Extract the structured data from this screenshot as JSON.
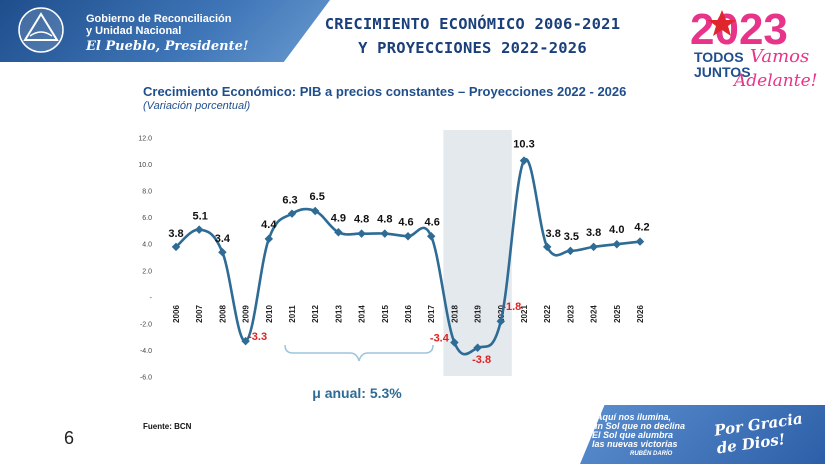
{
  "header": {
    "gov_line1": "Gobierno de Reconciliación",
    "gov_line2": "y Unidad Nacional",
    "motto": "El Pueblo, Presidente!",
    "headline_line1": "CRECIMIENTO ECONÓMICO 2006-2021",
    "headline_line2": "Y PROYECCIONES 2022-2026",
    "logo_text": "2023",
    "logo_sub1": "TODOS",
    "logo_sub2": "JUNTOS",
    "logo_script1": "Vamos",
    "logo_script2": "Adelante!"
  },
  "chart_data": {
    "type": "line",
    "title": "Crecimiento Económico: PIB a precios constantes – Proyecciones 2022 - 2026",
    "subtitle": "(Variación porcentual)",
    "x": [
      "2006",
      "2007",
      "2008",
      "2009",
      "2010",
      "2011",
      "2012",
      "2013",
      "2014",
      "2015",
      "2016",
      "2017",
      "2018",
      "2019",
      "2020",
      "2021",
      "2022",
      "2023",
      "2024",
      "2025",
      "2026"
    ],
    "values": [
      3.8,
      5.1,
      3.4,
      -3.3,
      4.4,
      6.3,
      6.5,
      4.9,
      4.8,
      4.8,
      4.6,
      4.6,
      -3.4,
      -3.8,
      -1.8,
      10.3,
      3.8,
      3.5,
      3.8,
      4.0,
      4.2
    ],
    "value_labels": [
      "3.8",
      "5.1",
      "3.4",
      "-3.3",
      "4.4",
      "6.3",
      "6.5",
      "4.9",
      "4.8",
      "4.8",
      "4.6",
      "4.6",
      "-3.4",
      "-3.8",
      "-1.8",
      "10.3",
      "3.8",
      "3.5",
      "3.8",
      "4.0",
      "4.2"
    ],
    "ylim": [
      -6.0,
      12.0
    ],
    "yticks": [
      "12.0",
      "10.0",
      "8.0",
      "6.0",
      "4.0",
      "2.0",
      "-",
      "-2.0",
      "-4.0",
      "-6.0"
    ],
    "highlight_range": [
      "2018",
      "2020"
    ],
    "annotation": "μ anual: 5.3%",
    "line_color": "#2e6b95",
    "negative_label_color": "#e02020",
    "grid": false
  },
  "footer": {
    "source": "Fuente: BCN",
    "page_number": "6",
    "banner_line1": "Aquí nos ilumina,",
    "banner_line2": "un Sol que no declina",
    "banner_line3": "El Sol que alumbra",
    "banner_line4": "las nuevas victorias",
    "banner_line5": "RUBÉN DARÍO",
    "banner_script": "Por Gracia de Dios!"
  }
}
